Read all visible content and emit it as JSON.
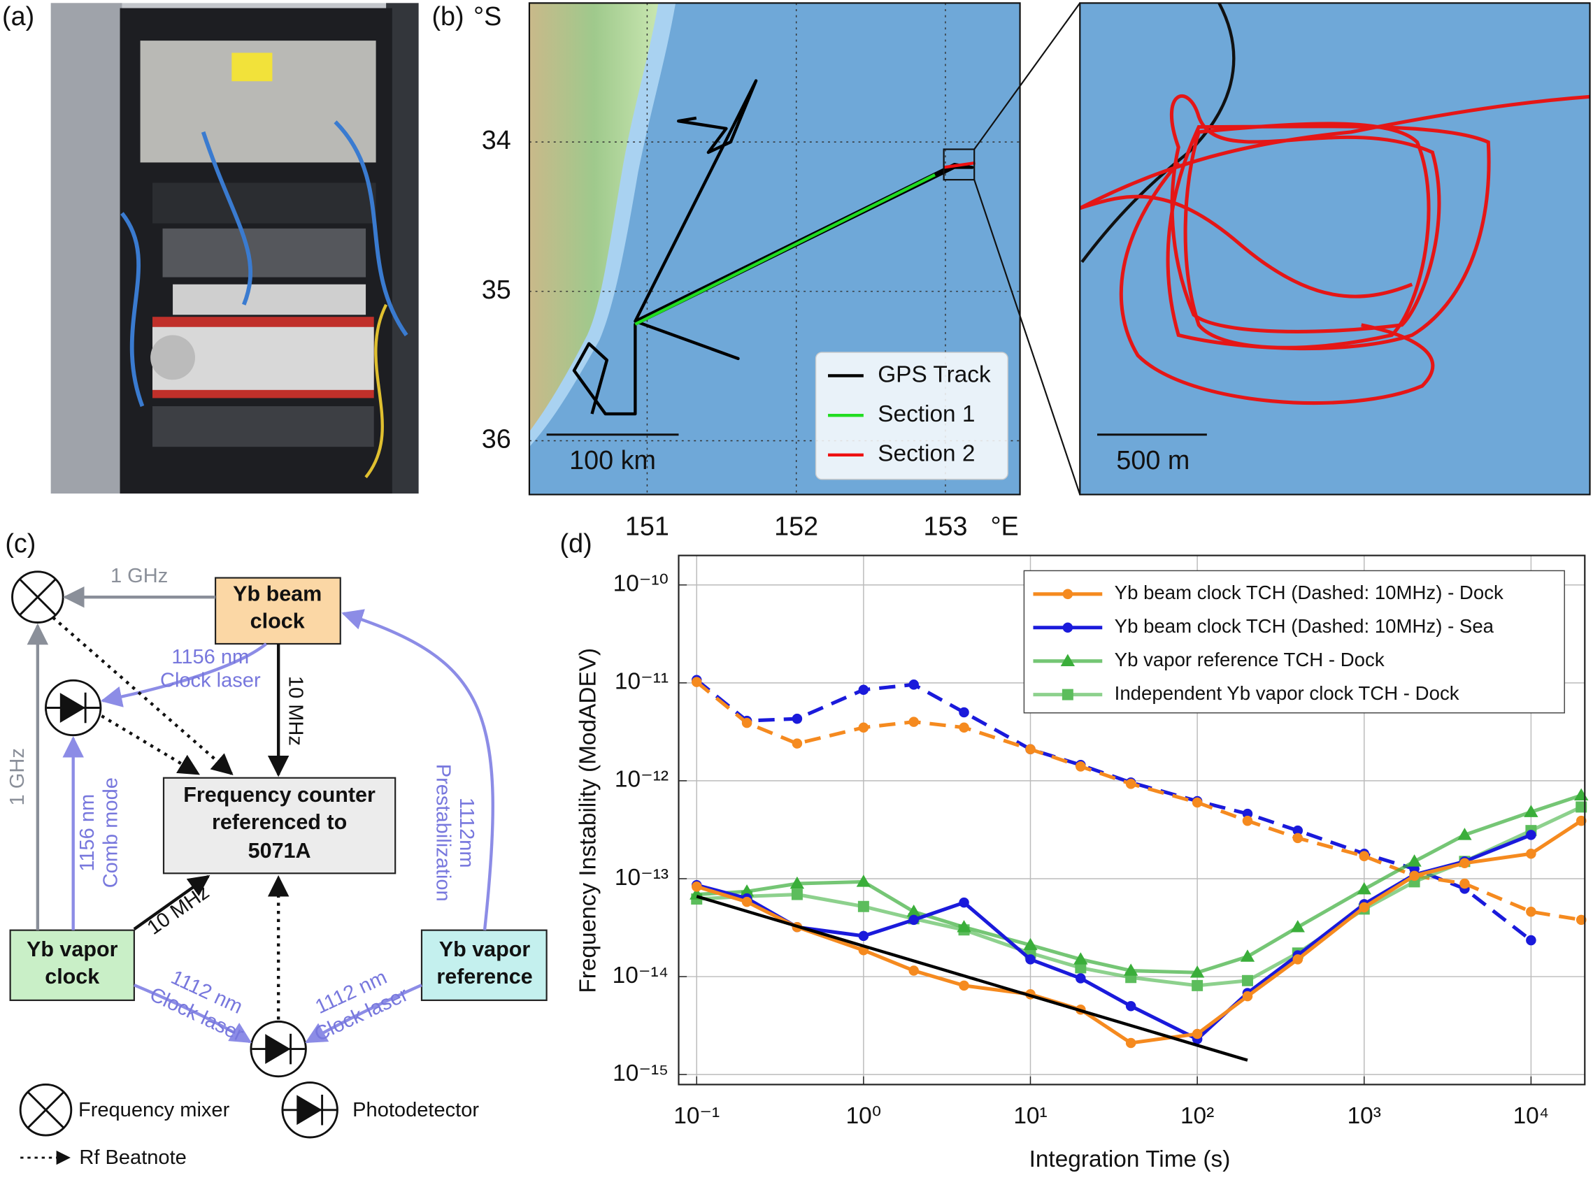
{
  "panel_labels": [
    "(a)",
    "(b)",
    "(c)",
    "(d)"
  ],
  "map": {
    "lat_unit": "°S",
    "lon_unit": "°E",
    "xlim": [
      150.21,
      153.5
    ],
    "ylim": [
      33.07,
      36.36
    ],
    "xticks": [
      151,
      152,
      153
    ],
    "yticks": [
      34,
      35,
      36
    ],
    "grid": true,
    "tracks": [
      {
        "name": "GPS Track",
        "color": "#000000",
        "lon": [
          151.33,
          151.21,
          151.53,
          151.41,
          151.56,
          151.73,
          150.92,
          151.61,
          150.92,
          153.06,
          153.18,
          153.06,
          150.92,
          150.92,
          150.72,
          150.51,
          150.61,
          150.73,
          150.63
        ],
        "lat": [
          33.84,
          33.86,
          33.91,
          34.07,
          34.0,
          33.59,
          35.2,
          35.45,
          35.2,
          34.15,
          34.17,
          34.17,
          35.22,
          35.82,
          35.82,
          35.53,
          35.35,
          35.46,
          35.82
        ]
      },
      {
        "name": "Section 1",
        "color": "#22dd22",
        "lon": [
          150.92,
          152.93
        ],
        "lat": [
          35.22,
          34.22
        ]
      },
      {
        "name": "Section 2",
        "color": "#ee1111",
        "lon": [
          152.99,
          153.2
        ],
        "lat": [
          34.17,
          34.14
        ]
      }
    ],
    "scale_bar": "100 km",
    "inset_scale_bar": "500 m"
  },
  "diagram": {
    "nodes": [
      {
        "label": [
          "Yb beam",
          "clock"
        ]
      },
      {
        "label": [
          "Frequency counter",
          "referenced to",
          "5071A"
        ]
      },
      {
        "label": [
          "Yb vapor",
          "clock"
        ]
      },
      {
        "label": [
          "Yb vapor",
          "reference"
        ]
      }
    ],
    "edges": [
      {
        "label": [
          "1 GHz"
        ]
      },
      {
        "label": [
          "1 GHz"
        ]
      },
      {
        "label": [
          "1156 nm",
          "Clock laser"
        ]
      },
      {
        "label": [
          "10 MHz"
        ]
      },
      {
        "label": [
          "1156 nm",
          "Comb mode"
        ]
      },
      {
        "label": [
          "10 MHz"
        ]
      },
      {
        "label": [
          "1112nm",
          "Prestabilization"
        ]
      },
      {
        "label": [
          "1112 nm",
          "Clock laser"
        ]
      },
      {
        "label": [
          "1112 nm",
          "Clock laser"
        ]
      }
    ],
    "legend": [
      "Frequency mixer",
      "Photodetector",
      "Rf Beatnote"
    ]
  },
  "chart_data": {
    "type": "line",
    "xlabel": "Integration Time (s)",
    "ylabel": "Frequency Instability (ModADEV)",
    "xscale": "log",
    "yscale": "log",
    "grid": true,
    "legend": "upper right",
    "xlim": [
      0.078,
      21000
    ],
    "ylim": [
      7.9e-16,
      2e-10
    ],
    "xticks": [
      {
        "value": 0.1,
        "label": "10⁻¹"
      },
      {
        "value": 1,
        "label": "10⁰"
      },
      {
        "value": 10,
        "label": "10¹"
      },
      {
        "value": 100,
        "label": "10²"
      },
      {
        "value": 1000,
        "label": "10³"
      },
      {
        "value": 10000,
        "label": "10⁴"
      }
    ],
    "yticks": [
      {
        "value": 1e-15,
        "label": "10⁻¹⁵"
      },
      {
        "value": 1e-14,
        "label": "10⁻¹⁴"
      },
      {
        "value": 1e-13,
        "label": "10⁻¹³"
      },
      {
        "value": 1e-12,
        "label": "10⁻¹²"
      },
      {
        "value": 1e-11,
        "label": "10⁻¹¹"
      },
      {
        "value": 1e-10,
        "label": "10⁻¹⁰"
      }
    ],
    "x": [
      0.1,
      0.2,
      0.4,
      1,
      2,
      4,
      10,
      20,
      40,
      100,
      200,
      400,
      1000,
      2000,
      4000,
      10000,
      20000
    ],
    "series": [
      {
        "name": "Yb beam clock TCH (Dashed: 10MHz) - Dock",
        "color": "#f58a1f",
        "style": "solid",
        "marker": "circle",
        "values": [
          8.3e-14,
          5.8e-14,
          3.2e-14,
          1.86e-14,
          1.15e-14,
          8.1e-15,
          6.6e-15,
          4.6e-15,
          2.1e-15,
          2.6e-15,
          6.3e-15,
          1.5e-14,
          5.1e-14,
          1.07e-13,
          1.44e-13,
          1.8e-13,
          3.9e-13
        ]
      },
      {
        "name": "Yb beam clock TCH (Dashed: 10MHz) - Sea",
        "color": "#1a1adb",
        "style": "solid",
        "marker": "circle",
        "values": [
          8.6e-14,
          6.3e-14,
          3.2e-14,
          2.6e-14,
          3.8e-14,
          5.7e-14,
          1.5e-14,
          9.6e-15,
          5e-15,
          2.3e-15,
          6.8e-15,
          1.65e-14,
          5.5e-14,
          1.1e-13,
          1.5e-13,
          2.8e-13,
          null
        ]
      },
      {
        "name": "Yb vapor reference TCH - Dock",
        "color": "#3aae3a",
        "style": "solid",
        "marker": "triangle",
        "values": [
          6.9e-14,
          7.4e-14,
          8.9e-14,
          9.3e-14,
          4.6e-14,
          3.2e-14,
          2.1e-14,
          1.5e-14,
          1.15e-14,
          1.1e-14,
          1.6e-14,
          3.2e-14,
          7.8e-14,
          1.5e-13,
          2.8e-13,
          4.8e-13,
          7.1e-13
        ]
      },
      {
        "name": "Independent Yb vapor clock TCH - Dock",
        "color": "#5cbd5c",
        "style": "solid",
        "marker": "square",
        "values": [
          6.2e-14,
          6.6e-14,
          6.9e-14,
          5.2e-14,
          3.9e-14,
          3e-14,
          1.74e-14,
          1.23e-14,
          9.8e-15,
          8.1e-15,
          9.1e-15,
          1.74e-14,
          4.9e-14,
          9.3e-14,
          1.5e-13,
          3.1e-13,
          5.4e-13
        ]
      },
      {
        "color": "#f58a1f",
        "style": "dashed",
        "marker": "circle",
        "values": [
          1.02e-11,
          3.9e-12,
          2.4e-12,
          3.5e-12,
          4e-12,
          3.5e-12,
          2.1e-12,
          1.4e-12,
          9.3e-13,
          6e-13,
          3.9e-13,
          2.6e-13,
          1.7e-13,
          1.07e-13,
          8.9e-14,
          4.6e-14,
          3.8e-14
        ]
      },
      {
        "color": "#1a1adb",
        "style": "dashed",
        "marker": "circle",
        "values": [
          1.07e-11,
          4.1e-12,
          4.3e-12,
          8.5e-12,
          9.6e-12,
          5e-12,
          2.1e-12,
          1.45e-12,
          9.6e-13,
          6.2e-13,
          4.6e-13,
          3.1e-13,
          1.8e-13,
          1.26e-13,
          7.9e-14,
          2.35e-14,
          null
        ]
      }
    ],
    "fit_line": {
      "color": "#000000",
      "x": [
        0.1,
        200
      ],
      "values": [
        6.6e-14,
        1.4e-15
      ]
    }
  }
}
